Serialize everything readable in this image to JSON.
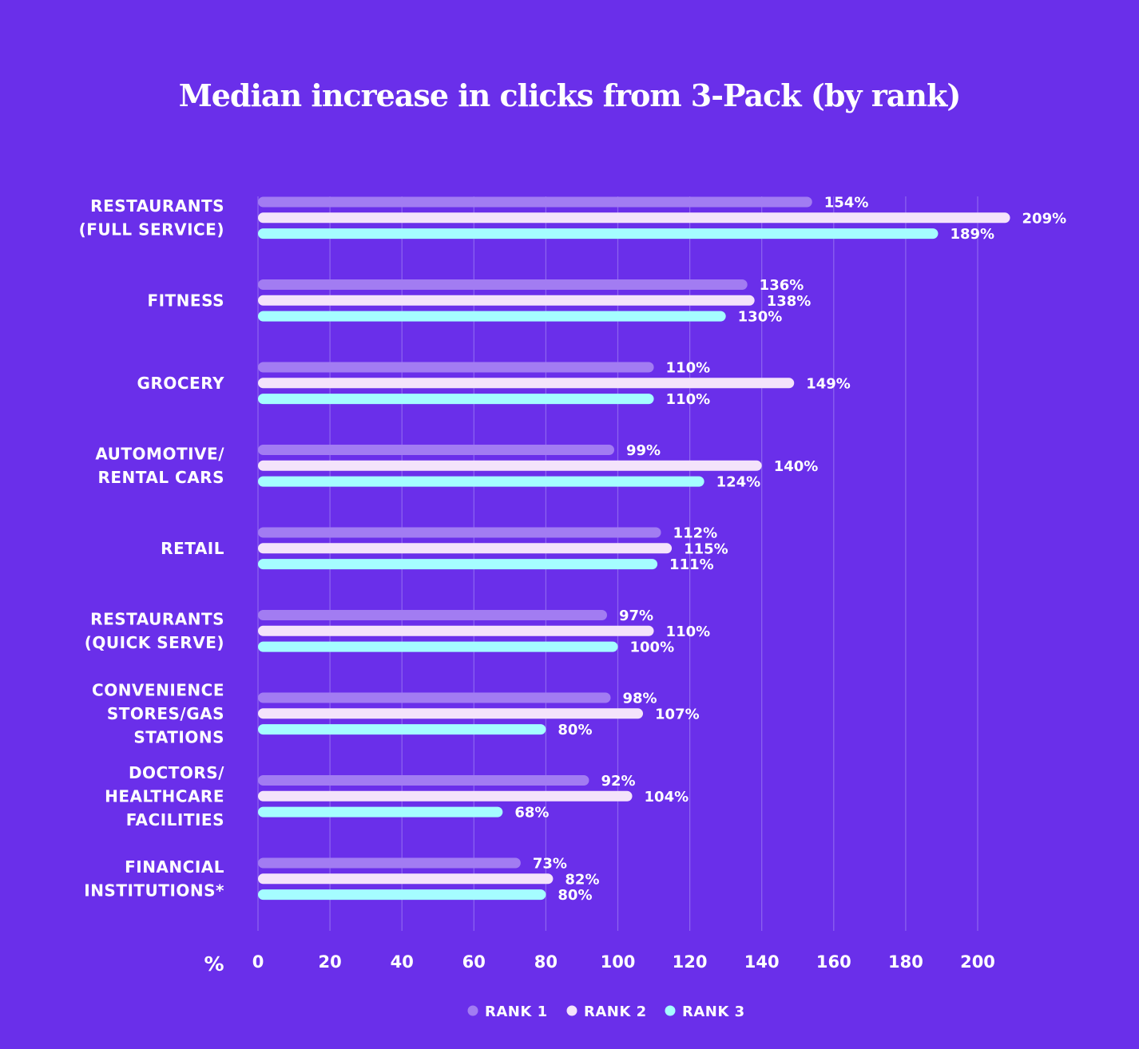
{
  "chart_data": {
    "type": "bar",
    "orientation": "horizontal",
    "title": "Median increase in clicks from 3-Pack (by rank)",
    "xlabel": "%",
    "xlim": [
      0,
      200
    ],
    "xticks": [
      "0",
      "20",
      "40",
      "60",
      "80",
      "100",
      "120",
      "140",
      "160",
      "180",
      "200"
    ],
    "grid": true,
    "legend_position": "bottom",
    "categories": [
      [
        "RESTAURANTS",
        "(FULL SERVICE)"
      ],
      [
        "FITNESS"
      ],
      [
        "GROCERY"
      ],
      [
        "AUTOMOTIVE/",
        "RENTAL CARS"
      ],
      [
        "RETAIL"
      ],
      [
        "RESTAURANTS",
        "(QUICK SERVE)"
      ],
      [
        "CONVENIENCE",
        "STORES/GAS",
        "STATIONS"
      ],
      [
        "DOCTORS/",
        "HEALTHCARE",
        "FACILITIES"
      ],
      [
        "FINANCIAL",
        "INSTITUTIONS*"
      ]
    ],
    "series": [
      {
        "name": "RANK 1",
        "color": "#a27cf2",
        "values": [
          154,
          136,
          110,
          99,
          112,
          97,
          98,
          92,
          73
        ],
        "labels": [
          "154%",
          "136%",
          "110%",
          "99%",
          "112%",
          "97%",
          "98%",
          "92%",
          "73%"
        ]
      },
      {
        "name": "RANK 2",
        "color": "#f4e3fb",
        "values": [
          209,
          138,
          149,
          140,
          115,
          110,
          107,
          104,
          82
        ],
        "labels": [
          "209%",
          "138%",
          "149%",
          "140%",
          "115%",
          "110%",
          "107%",
          "104%",
          "82%"
        ]
      },
      {
        "name": "RANK 3",
        "color": "#a5fdff",
        "values": [
          189,
          130,
          110,
          124,
          111,
          100,
          80,
          68,
          80
        ],
        "labels": [
          "189%",
          "130%",
          "110%",
          "124%",
          "111%",
          "100%",
          "80%",
          "68%",
          "80%"
        ]
      }
    ]
  },
  "colors": {
    "background": "#6a2fea",
    "gridline": "#9a78f2",
    "text": "#ffffff"
  }
}
